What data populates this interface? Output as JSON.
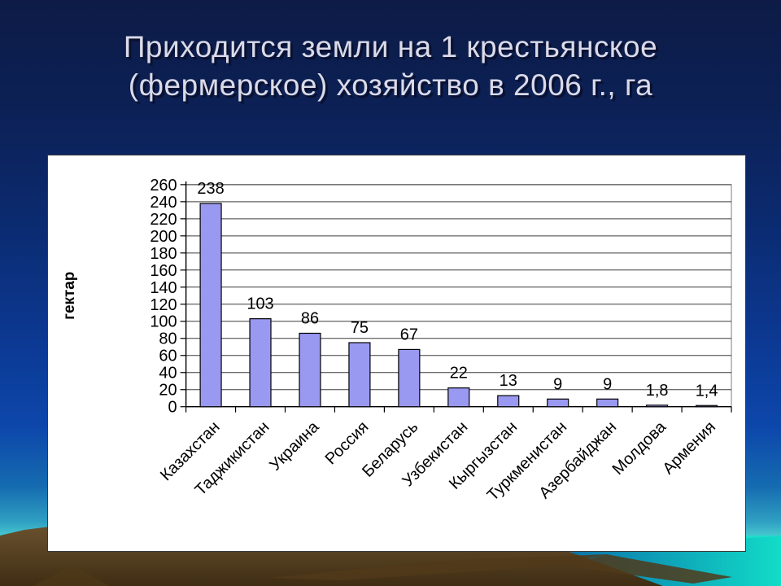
{
  "slide": {
    "title": "Приходится земли на 1 крестьянское (фермерское) хозяйство в 2006 г., га",
    "title_line1": "Приходится земли на 1 крестьянское",
    "title_line2": "(фермерское) хозяйство в 2006 г., га"
  },
  "chart_data": {
    "type": "bar",
    "title": "",
    "xlabel": "",
    "ylabel": "гектар",
    "categories": [
      "Казахстан",
      "Таджикистан",
      "Украина",
      "Россия",
      "Беларусь",
      "Узбекистан",
      "Кыргызстан",
      "Туркменистан",
      "Азербайджан",
      "Молдова",
      "Армения"
    ],
    "values": [
      238,
      103,
      86,
      75,
      67,
      22,
      13,
      9,
      9,
      1.8,
      1.4
    ],
    "value_labels": [
      "238",
      "103",
      "86",
      "75",
      "67",
      "22",
      "13",
      "9",
      "9",
      "1,8",
      "1,4"
    ],
    "ylim": [
      0,
      260
    ],
    "ytick_step": 20,
    "grid": true,
    "legend": false,
    "category_label_rotation_deg": -45,
    "bar_fill": "#9999f2",
    "bar_border": "#000000",
    "gridline_color": "#3d3d3d",
    "plot_border_color": "#7f7f7f",
    "axis_color": "#000000"
  },
  "colors": {
    "slide_bg_top": "#0d1b46",
    "slide_bg_mid_blue": "#0c3a96",
    "water_turquoise": "#12e3c7",
    "mountain_brown_light": "#6e5531",
    "mountain_brown_dark": "#3f2d13",
    "title_text": "#dadae9",
    "chart_panel_bg": "#ffffff"
  }
}
